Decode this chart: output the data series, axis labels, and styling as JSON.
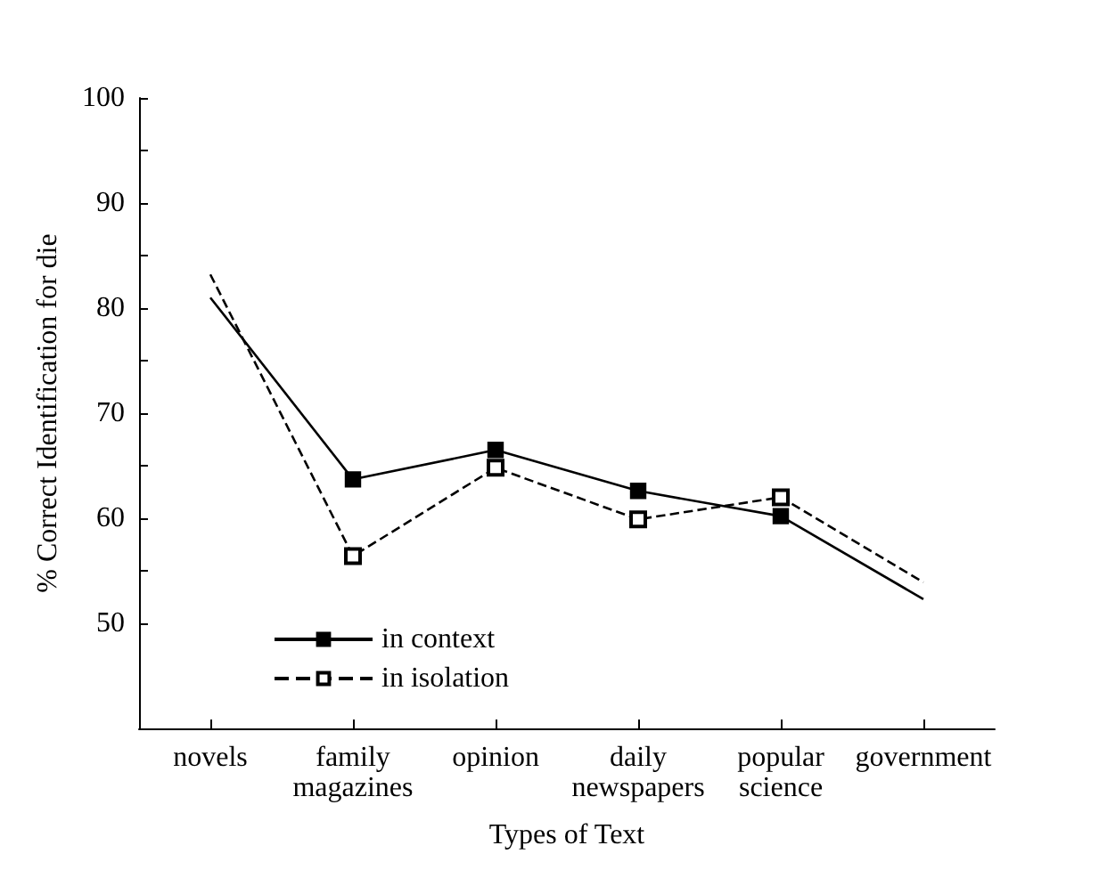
{
  "chart_data": {
    "type": "line",
    "xlabel": "Types of Text",
    "ylabel": "% Correct Identification for die",
    "categories": [
      "novels",
      "family magazines",
      "opinion",
      "daily newspapers",
      "popular science",
      "government"
    ],
    "series": [
      {
        "name": "in context",
        "color": "#000000",
        "line_style": "solid",
        "values": [
          81,
          63.7,
          66.5,
          62.6,
          60.2,
          52.3
        ]
      },
      {
        "name": "in isolation",
        "color": "#000000",
        "line_style": "dashed",
        "values": [
          83.2,
          56.4,
          64.8,
          59.9,
          62,
          53.9
        ]
      }
    ],
    "ylim": [
      40,
      100
    ],
    "yticks": [
      50,
      {
        "value": 55,
        "label": null
      },
      60,
      {
        "value": 65,
        "label": null
      },
      70,
      {
        "value": 75,
        "label": null
      },
      80,
      {
        "value": 85,
        "label": null
      },
      90,
      {
        "value": 95,
        "label": null
      },
      100
    ],
    "marker": "square",
    "grid": false,
    "legend": "bottom left"
  }
}
